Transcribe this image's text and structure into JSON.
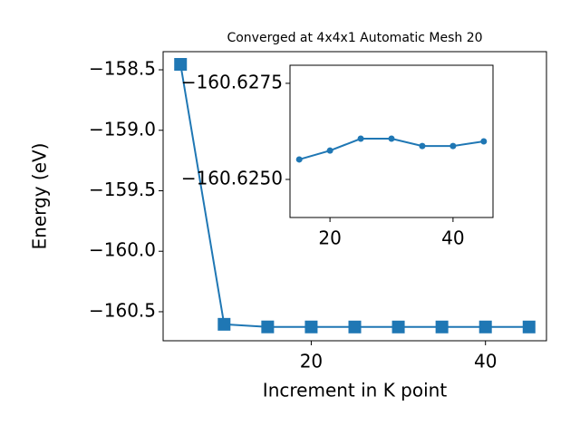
{
  "chart_data": [
    {
      "type": "line",
      "title": "Converged at 4x4x1 Automatic Mesh 20",
      "xlabel": "Increment in K point",
      "ylabel": "Energy (eV)",
      "x": [
        5,
        10,
        15,
        20,
        25,
        30,
        35,
        40,
        45
      ],
      "series": [
        {
          "color": "#1f77b4",
          "marker": "square",
          "values": [
            -158.455,
            -160.604,
            -160.6255,
            -160.6258,
            -160.6261,
            -160.6261,
            -160.6259,
            -160.6259,
            -160.626
          ]
        }
      ],
      "xlim": [
        3,
        47
      ],
      "xticks": [
        20,
        40
      ],
      "ylim": [
        -160.74,
        -158.35
      ],
      "yticks": [
        {
          "value": -158.5,
          "label": "−158.5"
        },
        {
          "value": -159.0,
          "label": "−159.0"
        },
        {
          "value": -159.5,
          "label": "−159.5"
        },
        {
          "value": -160.0,
          "label": "−160.0"
        },
        {
          "value": -160.5,
          "label": "−160.5"
        }
      ]
    },
    {
      "type": "line",
      "x": [
        15,
        20,
        25,
        30,
        35,
        40,
        45
      ],
      "series": [
        {
          "color": "#1f77b4",
          "marker": "circle",
          "values": [
            -160.62552,
            -160.62575,
            -160.62606,
            -160.62606,
            -160.62587,
            -160.62587,
            -160.62599
          ]
        }
      ],
      "xlim": [
        13.5,
        46.5
      ],
      "xticks": [
        20,
        40
      ],
      "ylim": [
        -160.62401,
        -160.62797
      ],
      "yticks": [
        {
          "value": -160.6275,
          "label": "−160.6275"
        },
        {
          "value": -160.625,
          "label": "−160.6250"
        }
      ]
    }
  ]
}
